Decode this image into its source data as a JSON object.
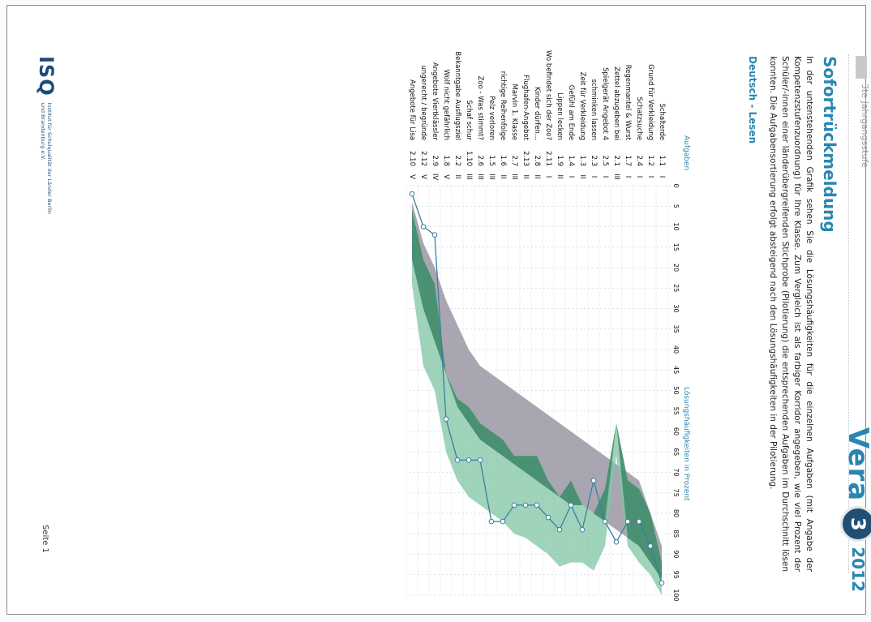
{
  "header": {
    "subtitle": "3te Jahrgangsstufe",
    "brand_vera": "Vera",
    "brand_number": "3",
    "brand_year": "2012"
  },
  "title": "Sofortrückmeldung",
  "intro": "In der untenstehenden Grafik sehen Sie die Lösungshäufigkeiten für die einzelnen Aufgaben (mit Angabe der Kompetenzstufenzuordnung) für Ihre Klasse. Zum Vergleich ist als farbiger Korridor angegeben, wie viel Prozent der Schüler/-innen einer länderübergreifenden Stichprobe (Pilotierung) die entsprechenden Aufgaben im Durchschnitt lösen konnten. Die Aufgabensortierung erfolgt absteigend nach den Lösungshäufigkeiten in der Pilotierung.",
  "section": "Deutsch - Lesen",
  "chart": {
    "col_tasks": "Aufgaben",
    "col_axis": "Lösungshäufigkeiten in Prozent",
    "x_ticks": [
      "0",
      "5",
      "10",
      "15",
      "20",
      "25",
      "30",
      "35",
      "40",
      "45",
      "50",
      "55",
      "60",
      "65",
      "70",
      "75",
      "80",
      "85",
      "90",
      "95",
      "100"
    ],
    "colors": {
      "corridor_light": "#7fc6a4",
      "corridor_dark": "#3f8a6a",
      "gray": "#9a96a3",
      "line": "#3a7fa0"
    }
  },
  "chart_data": {
    "type": "line",
    "xlabel": "Lösungshäufigkeiten in Prozent",
    "xlim": [
      0,
      100
    ],
    "categories": [
      {
        "name": "Schalterde",
        "nr": "1.1",
        "level": "I"
      },
      {
        "name": "Grund für Verkleidung",
        "nr": "1.2",
        "level": "I"
      },
      {
        "name": "Schatzsuche",
        "nr": "2.4",
        "level": "I"
      },
      {
        "name": "Regenmantel & Wurst",
        "nr": "1.7",
        "level": "I"
      },
      {
        "name": "Zettel abzugeben bei",
        "nr": "2.1",
        "level": "III"
      },
      {
        "name": "Spielgerät Angebot 4",
        "nr": "2.5",
        "level": "I"
      },
      {
        "name": "schminken lassen",
        "nr": "2.3",
        "level": "I"
      },
      {
        "name": "Zeit für Verkleidung",
        "nr": "1.3",
        "level": "II"
      },
      {
        "name": "Gefühl am Ende",
        "nr": "1.4",
        "level": "I"
      },
      {
        "name": "Lippen lecken",
        "nr": "1.9",
        "level": "II"
      },
      {
        "name": "Wo befindet sich der Zoo?",
        "nr": "2.11",
        "level": "I"
      },
      {
        "name": "Kinder dürfen...",
        "nr": "2.8",
        "level": "II"
      },
      {
        "name": "Flughafen-Angebot",
        "nr": "2.13",
        "level": "II"
      },
      {
        "name": "Marvin 1. Klasse",
        "nr": "2.7",
        "level": "III"
      },
      {
        "name": "richtige Reihenfolge",
        "nr": "1.6",
        "level": "II"
      },
      {
        "name": "Pelz verloren",
        "nr": "1.5",
        "level": "III"
      },
      {
        "name": "Zoo - Was stimmt?",
        "nr": "2.6",
        "level": "III"
      },
      {
        "name": "Schaf schur",
        "nr": "1.10",
        "level": "III"
      },
      {
        "name": "Bekanntgabe Ausflugsziel",
        "nr": "2.2",
        "level": "II"
      },
      {
        "name": "Wolf nicht gefährlich",
        "nr": "1.8",
        "level": "V"
      },
      {
        "name": "Angebote Viertklässler",
        "nr": "2.9",
        "level": "IV"
      },
      {
        "name": "ungerecht / begründe",
        "nr": "2.12",
        "level": "V"
      },
      {
        "name": "Angebote für Lisa",
        "nr": "2.10",
        "level": "V"
      }
    ],
    "series": [
      {
        "values": [
          97,
          88,
          82,
          82,
          87,
          82,
          72,
          84,
          78,
          84,
          81,
          78,
          78,
          78,
          82,
          82,
          67,
          67,
          67,
          57,
          12,
          10,
          2
        ]
      },
      {
        "values": [
          [
            92,
            100
          ],
          [
            80,
            95
          ],
          [
            74,
            92
          ],
          [
            72,
            88
          ],
          [
            58,
            66
          ],
          [
            74,
            88
          ],
          [
            80,
            94
          ],
          [
            78,
            92
          ],
          [
            72,
            92
          ],
          [
            76,
            93
          ],
          [
            72,
            90
          ],
          [
            66,
            88
          ],
          [
            66,
            86
          ],
          [
            66,
            85
          ],
          [
            62,
            82
          ],
          [
            60,
            80
          ],
          [
            58,
            78
          ],
          [
            54,
            76
          ],
          [
            52,
            72
          ],
          [
            46,
            65
          ],
          [
            24,
            50
          ],
          [
            18,
            44
          ],
          [
            6,
            24
          ]
        ]
      },
      {
        "values": [
          [
            88,
            96
          ],
          [
            80,
            92
          ],
          [
            72,
            88
          ],
          [
            70,
            86
          ],
          [
            68,
            84
          ],
          [
            66,
            82
          ],
          [
            64,
            80
          ],
          [
            62,
            78
          ],
          [
            60,
            78
          ],
          [
            58,
            76
          ],
          [
            56,
            74
          ],
          [
            54,
            72
          ],
          [
            52,
            70
          ],
          [
            50,
            68
          ],
          [
            48,
            66
          ],
          [
            46,
            64
          ],
          [
            44,
            62
          ],
          [
            40,
            58
          ],
          [
            34,
            54
          ],
          [
            28,
            46
          ],
          [
            20,
            38
          ],
          [
            14,
            30
          ],
          [
            4,
            18
          ]
        ]
      }
    ]
  },
  "footer": {
    "isq_logo": "ISQ",
    "isq_text": "Institut für Schulqualität der Länder Berlin und Brandenburg e.V.",
    "page": "Seite 1"
  }
}
